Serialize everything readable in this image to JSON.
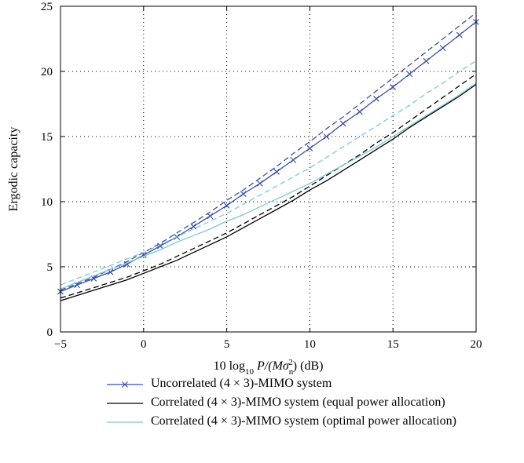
{
  "chart_data": {
    "type": "line",
    "xlabel": "10 log10 P/(Mσn²) (dB)",
    "ylabel": "Ergodic capacity",
    "xlim": [
      -5,
      20
    ],
    "ylim": [
      0,
      25
    ],
    "xticks": [
      -5,
      0,
      5,
      10,
      15,
      20
    ],
    "yticks": [
      0,
      5,
      10,
      15,
      20,
      25
    ],
    "grid": true,
    "legend_position": "below",
    "x": [
      -5,
      -4,
      -3,
      -2,
      -1,
      0,
      1,
      2,
      3,
      4,
      5,
      6,
      7,
      8,
      9,
      10,
      11,
      12,
      13,
      14,
      15,
      16,
      17,
      18,
      19,
      20
    ],
    "series": [
      {
        "name": "Uncorrelated (4 × 3)-MIMO system",
        "color": "#3a4fa8",
        "dash": false,
        "marker": "x",
        "values": [
          3.1,
          3.6,
          4.1,
          4.6,
          5.2,
          5.9,
          6.6,
          7.3,
          8.1,
          8.9,
          9.7,
          10.6,
          11.4,
          12.3,
          13.2,
          14.1,
          15.0,
          16.0,
          16.9,
          17.9,
          18.8,
          19.8,
          20.8,
          21.8,
          22.8,
          23.8
        ]
      },
      {
        "name": "",
        "color": "#3a4fa8",
        "dash": true,
        "marker": "",
        "values": [
          3.2,
          3.7,
          4.2,
          4.8,
          5.4,
          6.1,
          6.8,
          7.6,
          8.4,
          9.2,
          10.1,
          10.9,
          11.8,
          12.7,
          13.7,
          14.6,
          15.6,
          16.5,
          17.5,
          18.5,
          19.5,
          20.5,
          21.5,
          22.5,
          23.5,
          24.5
        ]
      },
      {
        "name": "Correlated (4 × 3)-MIMO system (equal power allocation)",
        "color": "#000000",
        "dash": false,
        "marker": "",
        "values": [
          2.4,
          2.8,
          3.2,
          3.6,
          4.0,
          4.5,
          5.0,
          5.5,
          6.1,
          6.7,
          7.3,
          8.0,
          8.7,
          9.4,
          10.1,
          10.9,
          11.6,
          12.4,
          13.2,
          14.0,
          14.8,
          15.7,
          16.5,
          17.3,
          18.1,
          19.0
        ]
      },
      {
        "name": "",
        "color": "#000000",
        "dash": true,
        "marker": "",
        "values": [
          2.6,
          3.0,
          3.4,
          3.8,
          4.2,
          4.7,
          5.2,
          5.8,
          6.4,
          7.0,
          7.6,
          8.3,
          9.0,
          9.7,
          10.4,
          11.2,
          12.0,
          12.8,
          13.6,
          14.5,
          15.3,
          16.2,
          17.1,
          18.0,
          18.9,
          19.8
        ]
      },
      {
        "name": "Correlated (4 × 3)-MIMO system (optimal power allocation)",
        "color": "#7ec8d8",
        "dash": false,
        "marker": "",
        "values": [
          3.3,
          3.8,
          4.3,
          4.8,
          5.3,
          5.8,
          6.3,
          6.9,
          7.4,
          7.9,
          8.5,
          9.0,
          9.6,
          10.2,
          10.8,
          11.4,
          12.1,
          12.8,
          13.5,
          14.2,
          15.0,
          15.8,
          16.6,
          17.4,
          18.2,
          19.1
        ]
      },
      {
        "name": "",
        "color": "#7ec8d8",
        "dash": true,
        "marker": "",
        "values": [
          3.6,
          4.1,
          4.6,
          5.1,
          5.6,
          6.1,
          6.7,
          7.3,
          7.9,
          8.5,
          9.1,
          9.8,
          10.5,
          11.2,
          11.9,
          12.6,
          13.4,
          14.2,
          15.0,
          15.8,
          16.6,
          17.4,
          18.3,
          19.1,
          20.0,
          20.8
        ]
      }
    ]
  },
  "labels": {
    "xlabel_pre": "10 log",
    "xlabel_sub": "10",
    "xlabel_mid": " P/(Mσ",
    "xlabel_nsub": "n",
    "xlabel_sup": "2",
    "xlabel_post": ") (dB)"
  }
}
